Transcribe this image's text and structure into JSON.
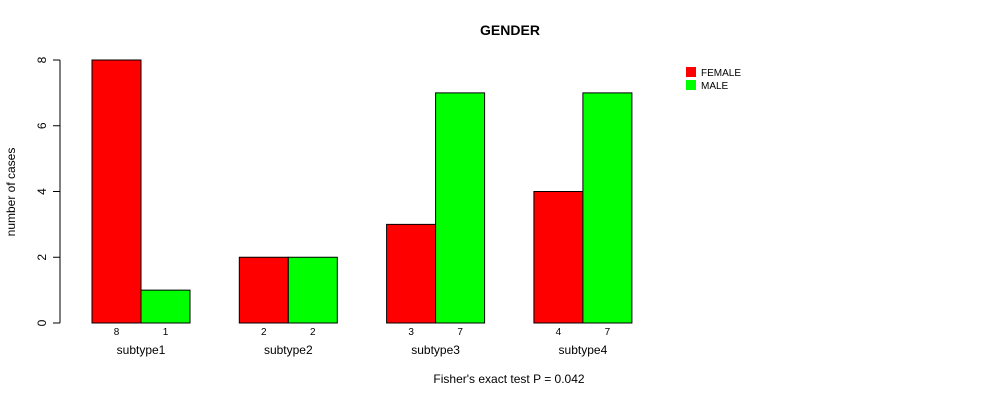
{
  "chart_data": {
    "type": "bar",
    "title": "GENDER",
    "ylabel": "number of cases",
    "xlabel": "",
    "footnote": "Fisher's exact test P = 0.042",
    "categories": [
      "subtype1",
      "subtype2",
      "subtype3",
      "subtype4"
    ],
    "series": [
      {
        "name": "FEMALE",
        "color": "#ff0000",
        "values": [
          8,
          2,
          3,
          4
        ]
      },
      {
        "name": "MALE",
        "color": "#00ff00",
        "values": [
          1,
          2,
          7,
          7
        ]
      }
    ],
    "ylim": [
      0,
      8
    ],
    "yticks": [
      0,
      2,
      4,
      6,
      8
    ],
    "grid": false,
    "legend_position": "top-right"
  }
}
